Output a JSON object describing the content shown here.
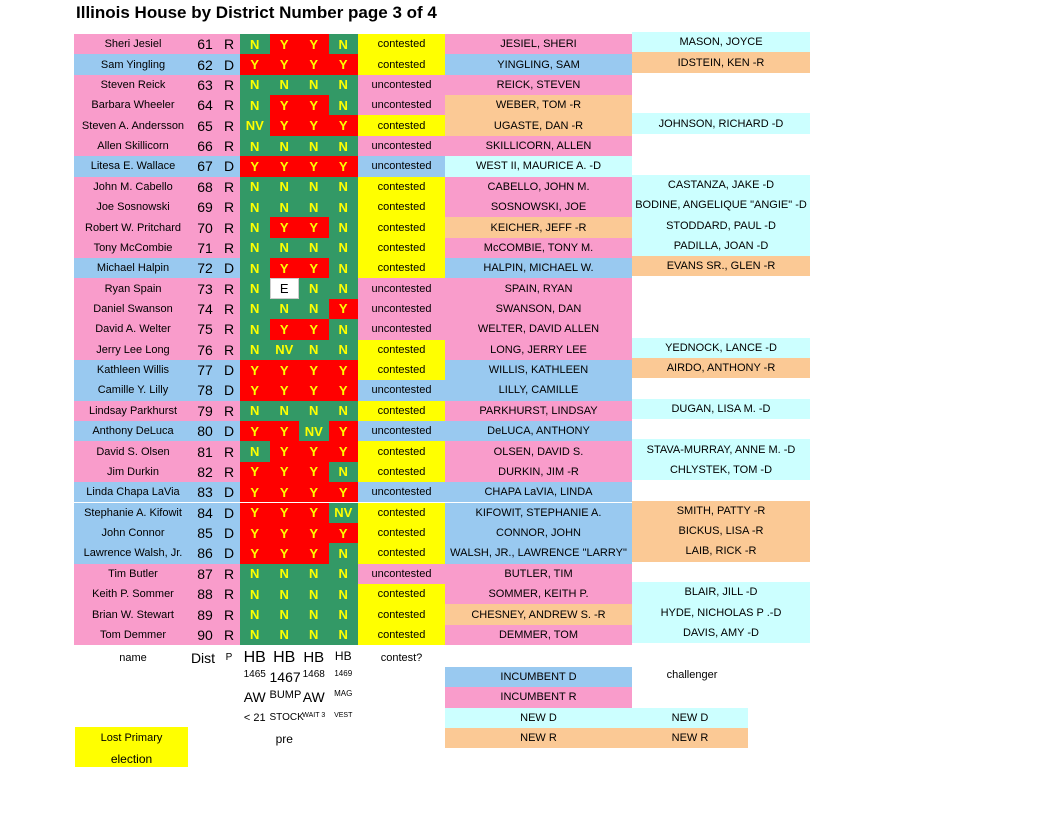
{
  "title": "Illinois House by District Number page 3 of 4",
  "party_colors": {
    "R": "#f99ccb",
    "D": "#99c9f0"
  },
  "vote_colors": {
    "Y": "#ff0000",
    "N": "#339966",
    "NV": "#339966",
    "E": "#ffffff"
  },
  "contested_color": "#ffff00",
  "rows": [
    {
      "name": "Sheri Jesiel",
      "dist": 61,
      "party": "R",
      "votes": [
        "N",
        "Y",
        "Y",
        "N"
      ],
      "contest": "contested",
      "winner": "JESIEL, SHERI",
      "winner_color": "#f99ccb",
      "challenger": "MASON, JOYCE",
      "challenger_color": "#ccffff"
    },
    {
      "name": "Sam Yingling",
      "dist": 62,
      "party": "D",
      "votes": [
        "Y",
        "Y",
        "Y",
        "Y"
      ],
      "contest": "contested",
      "winner": "YINGLING, SAM",
      "winner_color": "#99c9f0",
      "challenger": "IDSTEIN, KEN -R",
      "challenger_color": "#fbc995"
    },
    {
      "name": "Steven Reick",
      "dist": 63,
      "party": "R",
      "votes": [
        "N",
        "N",
        "N",
        "N"
      ],
      "contest": "uncontested",
      "winner": "REICK, STEVEN",
      "winner_color": "#f99ccb"
    },
    {
      "name": "Barbara Wheeler",
      "dist": 64,
      "party": "R",
      "votes": [
        "N",
        "Y",
        "Y",
        "N"
      ],
      "contest": "uncontested",
      "winner": "WEBER, TOM -R",
      "winner_color": "#fbc995"
    },
    {
      "name": "Steven A. Andersson",
      "dist": 65,
      "party": "R",
      "votes": [
        "NV",
        "Y",
        "Y",
        "Y"
      ],
      "contest": "contested",
      "winner": "UGASTE, DAN -R",
      "winner_color": "#fbc995",
      "challenger": "JOHNSON, RICHARD -D",
      "challenger_color": "#ccffff"
    },
    {
      "name": "Allen Skillicorn",
      "dist": 66,
      "party": "R",
      "votes": [
        "N",
        "N",
        "N",
        "N"
      ],
      "contest": "uncontested",
      "winner": "SKILLICORN, ALLEN",
      "winner_color": "#f99ccb"
    },
    {
      "name": "Litesa E. Wallace",
      "dist": 67,
      "party": "D",
      "votes": [
        "Y",
        "Y",
        "Y",
        "Y"
      ],
      "contest": "uncontested",
      "winner": "WEST II, MAURICE A. -D",
      "winner_color": "#ccffff"
    },
    {
      "name": "John M. Cabello",
      "dist": 68,
      "party": "R",
      "votes": [
        "N",
        "N",
        "N",
        "N"
      ],
      "contest": "contested",
      "winner": "CABELLO, JOHN M.",
      "winner_color": "#f99ccb",
      "challenger": "CASTANZA, JAKE -D",
      "challenger_color": "#ccffff"
    },
    {
      "name": "Joe Sosnowski",
      "dist": 69,
      "party": "R",
      "votes": [
        "N",
        "N",
        "N",
        "N"
      ],
      "contest": "contested",
      "winner": "SOSNOWSKI, JOE",
      "winner_color": "#f99ccb",
      "challenger": "BODINE, ANGELIQUE \"ANGIE\" -D",
      "challenger_color": "#ccffff"
    },
    {
      "name": "Robert W. Pritchard",
      "dist": 70,
      "party": "R",
      "votes": [
        "N",
        "Y",
        "Y",
        "N"
      ],
      "contest": "contested",
      "winner": "KEICHER, JEFF -R",
      "winner_color": "#fbc995",
      "challenger": "STODDARD, PAUL -D",
      "challenger_color": "#ccffff"
    },
    {
      "name": "Tony McCombie",
      "dist": 71,
      "party": "R",
      "votes": [
        "N",
        "N",
        "N",
        "N"
      ],
      "contest": "contested",
      "winner": "McCOMBIE, TONY M.",
      "winner_color": "#f99ccb",
      "challenger": "PADILLA, JOAN -D",
      "challenger_color": "#ccffff"
    },
    {
      "name": "Michael Halpin",
      "dist": 72,
      "party": "D",
      "votes": [
        "N",
        "Y",
        "Y",
        "N"
      ],
      "contest": "contested",
      "winner": "HALPIN, MICHAEL W.",
      "winner_color": "#99c9f0",
      "challenger": "EVANS SR., GLEN -R",
      "challenger_color": "#fbc995"
    },
    {
      "name": "Ryan Spain",
      "dist": 73,
      "party": "R",
      "votes": [
        "N",
        "E",
        "N",
        "N"
      ],
      "contest": "uncontested",
      "winner": "SPAIN, RYAN",
      "winner_color": "#f99ccb"
    },
    {
      "name": "Daniel Swanson",
      "dist": 74,
      "party": "R",
      "votes": [
        "N",
        "N",
        "N",
        "Y"
      ],
      "contest": "uncontested",
      "winner": "SWANSON, DAN",
      "winner_color": "#f99ccb"
    },
    {
      "name": "David A. Welter",
      "dist": 75,
      "party": "R",
      "votes": [
        "N",
        "Y",
        "Y",
        "N"
      ],
      "contest": "uncontested",
      "winner": "WELTER, DAVID ALLEN",
      "winner_color": "#f99ccb"
    },
    {
      "name": "Jerry Lee Long",
      "dist": 76,
      "party": "R",
      "votes": [
        "N",
        "NV",
        "N",
        "N"
      ],
      "contest": "contested",
      "winner": "LONG, JERRY LEE",
      "winner_color": "#f99ccb",
      "challenger": "YEDNOCK, LANCE -D",
      "challenger_color": "#ccffff"
    },
    {
      "name": "Kathleen Willis",
      "dist": 77,
      "party": "D",
      "votes": [
        "Y",
        "Y",
        "Y",
        "Y"
      ],
      "contest": "contested",
      "winner": "WILLIS, KATHLEEN",
      "winner_color": "#99c9f0",
      "challenger": "AIRDO, ANTHONY -R",
      "challenger_color": "#fbc995"
    },
    {
      "name": "Camille Y. Lilly",
      "dist": 78,
      "party": "D",
      "votes": [
        "Y",
        "Y",
        "Y",
        "Y"
      ],
      "contest": "uncontested",
      "winner": "LILLY, CAMILLE",
      "winner_color": "#99c9f0"
    },
    {
      "name": "Lindsay Parkhurst",
      "dist": 79,
      "party": "R",
      "votes": [
        "N",
        "N",
        "N",
        "N"
      ],
      "contest": "contested",
      "winner": "PARKHURST, LINDSAY",
      "winner_color": "#f99ccb",
      "challenger": "DUGAN, LISA M. -D",
      "challenger_color": "#ccffff"
    },
    {
      "name": "Anthony DeLuca",
      "dist": 80,
      "party": "D",
      "votes": [
        "Y",
        "Y",
        "NV",
        "Y"
      ],
      "contest": "uncontested",
      "winner": "DeLUCA, ANTHONY",
      "winner_color": "#99c9f0"
    },
    {
      "name": "David S. Olsen",
      "dist": 81,
      "party": "R",
      "votes": [
        "N",
        "Y",
        "Y",
        "Y"
      ],
      "contest": "contested",
      "winner": "OLSEN, DAVID S.",
      "winner_color": "#f99ccb",
      "challenger": "STAVA-MURRAY, ANNE M. -D",
      "challenger_color": "#ccffff"
    },
    {
      "name": "Jim Durkin",
      "dist": 82,
      "party": "R",
      "votes": [
        "Y",
        "Y",
        "Y",
        "N"
      ],
      "contest": "contested",
      "winner": "DURKIN, JIM -R",
      "winner_color": "#f99ccb",
      "challenger": "CHLYSTEK, TOM -D",
      "challenger_color": "#ccffff"
    },
    {
      "name": "Linda Chapa LaVia",
      "dist": 83,
      "party": "D",
      "votes": [
        "Y",
        "Y",
        "Y",
        "Y"
      ],
      "contest": "uncontested",
      "winner": "CHAPA LaVIA, LINDA",
      "winner_color": "#99c9f0"
    },
    {
      "name": "Stephanie A. Kifowit",
      "dist": 84,
      "party": "D",
      "votes": [
        "Y",
        "Y",
        "Y",
        "NV"
      ],
      "contest": "contested",
      "winner": "KIFOWIT, STEPHANIE A.",
      "winner_color": "#99c9f0",
      "challenger": "SMITH, PATTY -R",
      "challenger_color": "#fbc995"
    },
    {
      "name": "John Connor",
      "dist": 85,
      "party": "D",
      "votes": [
        "Y",
        "Y",
        "Y",
        "Y"
      ],
      "contest": "contested",
      "winner": "CONNOR, JOHN",
      "winner_color": "#99c9f0",
      "challenger": "BICKUS, LISA -R",
      "challenger_color": "#fbc995"
    },
    {
      "name": "Lawrence Walsh, Jr.",
      "dist": 86,
      "party": "D",
      "votes": [
        "Y",
        "Y",
        "Y",
        "N"
      ],
      "contest": "contested",
      "winner": "WALSH, JR., LAWRENCE \"LARRY\"",
      "winner_color": "#99c9f0",
      "challenger": "LAIB, RICK -R",
      "challenger_color": "#fbc995"
    },
    {
      "name": "Tim Butler",
      "dist": 87,
      "party": "R",
      "votes": [
        "N",
        "N",
        "N",
        "N"
      ],
      "contest": "uncontested",
      "winner": "BUTLER, TIM",
      "winner_color": "#f99ccb"
    },
    {
      "name": "Keith P. Sommer",
      "dist": 88,
      "party": "R",
      "votes": [
        "N",
        "N",
        "N",
        "N"
      ],
      "contest": "contested",
      "winner": "SOMMER, KEITH P.",
      "winner_color": "#f99ccb",
      "challenger": "BLAIR, JILL -D",
      "challenger_color": "#ccffff"
    },
    {
      "name": "Brian W. Stewart",
      "dist": 89,
      "party": "R",
      "votes": [
        "N",
        "N",
        "N",
        "N"
      ],
      "contest": "contested",
      "winner": "CHESNEY, ANDREW S. -R",
      "winner_color": "#fbc995",
      "challenger": "HYDE, NICHOLAS P .-D",
      "challenger_color": "#ccffff"
    },
    {
      "name": "Tom Demmer",
      "dist": 90,
      "party": "R",
      "votes": [
        "N",
        "N",
        "N",
        "N"
      ],
      "contest": "contested",
      "winner": "DEMMER, TOM",
      "winner_color": "#f99ccb",
      "challenger": "DAVIS, AMY -D",
      "challenger_color": "#ccffff"
    }
  ],
  "header": {
    "name": "name",
    "dist": "Dist",
    "party": "P",
    "bills": [
      "HB",
      "HB",
      "HB",
      "HB"
    ],
    "contest": "contest?"
  },
  "bill_numbers": [
    "1465",
    "1467",
    "1468",
    "1469"
  ],
  "bill_short": [
    "AW",
    "BUMP",
    "AW",
    "MAG"
  ],
  "bill_topic": [
    "< 21",
    "STOCK",
    "WAIT 3",
    "VEST"
  ],
  "bill_note": "pre",
  "challenger_label": "challenger",
  "legend": [
    {
      "label": "INCUMBENT D",
      "color": "#99c9f0"
    },
    {
      "label": "INCUMBENT R",
      "color": "#f99ccb"
    },
    {
      "label": "NEW  D",
      "label2": "NEW D",
      "color": "#ccffff"
    },
    {
      "label": "NEW  R",
      "label2": "NEW R",
      "color": "#fbc995"
    }
  ],
  "lost_primary": {
    "lines": [
      "Lost Primary",
      "election"
    ],
    "color": "#ffff00"
  }
}
